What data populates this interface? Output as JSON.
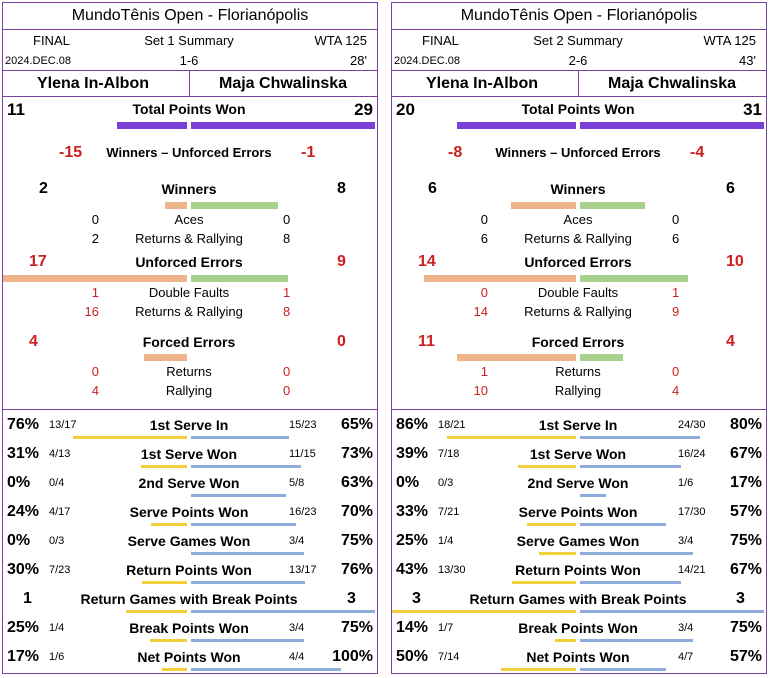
{
  "colors": {
    "purple": "#7a3fd9",
    "orange": "#f0b48a",
    "green": "#a9d18e",
    "yellow": "#f2cf3a",
    "blue": "#8faadc",
    "red": "#cc1f1f",
    "border": "#7b3fa0"
  },
  "chart_data": [
    {
      "type": "table",
      "header": {
        "title": "MundoTênis Open - Florianópolis",
        "round": "FINAL",
        "summary": "Set 1 Summary",
        "category": "WTA 125",
        "date": "2024.DEC.08",
        "score": "1-6",
        "duration": "28'",
        "player1": "Ylena In-Albon",
        "player2": "Maja Chwalinska"
      },
      "total_points": {
        "label": "Total Points Won",
        "p1": 11,
        "p2": 29
      },
      "w_ue": {
        "label": "Winners – Unforced Errors",
        "p1": "-15",
        "p2": "-1"
      },
      "winners": {
        "label": "Winners",
        "p1": 2,
        "p2": 8,
        "sub": [
          {
            "label": "Aces",
            "p1": 0,
            "p2": 0
          },
          {
            "label": "Returns & Rallying",
            "p1": 2,
            "p2": 8
          }
        ]
      },
      "unforced": {
        "label": "Unforced Errors",
        "p1": 17,
        "p2": 9,
        "sub": [
          {
            "label": "Double Faults",
            "p1": 1,
            "p2": 1
          },
          {
            "label": "Returns & Rallying",
            "p1": 16,
            "p2": 8
          }
        ]
      },
      "forced": {
        "label": "Forced Errors",
        "p1": 4,
        "p2": 0,
        "sub": [
          {
            "label": "Returns",
            "p1": 0,
            "p2": 0
          },
          {
            "label": "Rallying",
            "p1": 4,
            "p2": 0
          }
        ]
      },
      "serve_stats": [
        {
          "label": "1st Serve In",
          "p1_pct": "76%",
          "p1_frac": "13/17",
          "p2_frac": "15/23",
          "p2_pct": "65%",
          "p1_val": 0.76,
          "p2_val": 0.65
        },
        {
          "label": "1st Serve Won",
          "p1_pct": "31%",
          "p1_frac": "4/13",
          "p2_frac": "11/15",
          "p2_pct": "73%",
          "p1_val": 0.31,
          "p2_val": 0.73
        },
        {
          "label": "2nd Serve Won",
          "p1_pct": "0%",
          "p1_frac": "0/4",
          "p2_frac": "5/8",
          "p2_pct": "63%",
          "p1_val": 0.0,
          "p2_val": 0.63
        },
        {
          "label": "Serve Points Won",
          "p1_pct": "24%",
          "p1_frac": "4/17",
          "p2_frac": "16/23",
          "p2_pct": "70%",
          "p1_val": 0.24,
          "p2_val": 0.7
        },
        {
          "label": "Serve Games Won",
          "p1_pct": "0%",
          "p1_frac": "0/3",
          "p2_frac": "3/4",
          "p2_pct": "75%",
          "p1_val": 0.0,
          "p2_val": 0.75
        },
        {
          "label": "Return Points Won",
          "p1_pct": "30%",
          "p1_frac": "7/23",
          "p2_frac": "13/17",
          "p2_pct": "76%",
          "p1_val": 0.3,
          "p2_val": 0.76
        }
      ],
      "rg_bp": {
        "label": "Return Games with Break Points",
        "p1": 1,
        "p2": 3
      },
      "tail_stats": [
        {
          "label": "Break Points Won",
          "p1_pct": "25%",
          "p1_frac": "1/4",
          "p2_frac": "3/4",
          "p2_pct": "75%",
          "p1_val": 0.25,
          "p2_val": 0.75
        },
        {
          "label": "Net Points Won",
          "p1_pct": "17%",
          "p1_frac": "1/6",
          "p2_frac": "4/4",
          "p2_pct": "100%",
          "p1_val": 0.17,
          "p2_val": 1.0
        }
      ]
    },
    {
      "type": "table",
      "header": {
        "title": "MundoTênis Open - Florianópolis",
        "round": "FINAL",
        "summary": "Set 2 Summary",
        "category": "WTA 125",
        "date": "2024.DEC.08",
        "score": "2-6",
        "duration": "43'",
        "player1": "Ylena In-Albon",
        "player2": "Maja Chwalinska"
      },
      "total_points": {
        "label": "Total Points Won",
        "p1": 20,
        "p2": 31
      },
      "w_ue": {
        "label": "Winners – Unforced Errors",
        "p1": "-8",
        "p2": "-4"
      },
      "winners": {
        "label": "Winners",
        "p1": 6,
        "p2": 6,
        "sub": [
          {
            "label": "Aces",
            "p1": 0,
            "p2": 0
          },
          {
            "label": "Returns & Rallying",
            "p1": 6,
            "p2": 6
          }
        ]
      },
      "unforced": {
        "label": "Unforced Errors",
        "p1": 14,
        "p2": 10,
        "sub": [
          {
            "label": "Double Faults",
            "p1": 0,
            "p2": 1
          },
          {
            "label": "Returns & Rallying",
            "p1": 14,
            "p2": 9
          }
        ]
      },
      "forced": {
        "label": "Forced Errors",
        "p1": 11,
        "p2": 4,
        "sub": [
          {
            "label": "Returns",
            "p1": 1,
            "p2": 0
          },
          {
            "label": "Rallying",
            "p1": 10,
            "p2": 4
          }
        ]
      },
      "serve_stats": [
        {
          "label": "1st Serve In",
          "p1_pct": "86%",
          "p1_frac": "18/21",
          "p2_frac": "24/30",
          "p2_pct": "80%",
          "p1_val": 0.86,
          "p2_val": 0.8
        },
        {
          "label": "1st Serve Won",
          "p1_pct": "39%",
          "p1_frac": "7/18",
          "p2_frac": "16/24",
          "p2_pct": "67%",
          "p1_val": 0.39,
          "p2_val": 0.67
        },
        {
          "label": "2nd Serve Won",
          "p1_pct": "0%",
          "p1_frac": "0/3",
          "p2_frac": "1/6",
          "p2_pct": "17%",
          "p1_val": 0.0,
          "p2_val": 0.17
        },
        {
          "label": "Serve Points Won",
          "p1_pct": "33%",
          "p1_frac": "7/21",
          "p2_frac": "17/30",
          "p2_pct": "57%",
          "p1_val": 0.33,
          "p2_val": 0.57
        },
        {
          "label": "Serve Games Won",
          "p1_pct": "25%",
          "p1_frac": "1/4",
          "p2_frac": "3/4",
          "p2_pct": "75%",
          "p1_val": 0.25,
          "p2_val": 0.75
        },
        {
          "label": "Return Points Won",
          "p1_pct": "43%",
          "p1_frac": "13/30",
          "p2_frac": "14/21",
          "p2_pct": "67%",
          "p1_val": 0.43,
          "p2_val": 0.67
        }
      ],
      "rg_bp": {
        "label": "Return Games with Break Points",
        "p1": 3,
        "p2": 3
      },
      "tail_stats": [
        {
          "label": "Break Points Won",
          "p1_pct": "14%",
          "p1_frac": "1/7",
          "p2_frac": "3/4",
          "p2_pct": "75%",
          "p1_val": 0.14,
          "p2_val": 0.75
        },
        {
          "label": "Net Points Won",
          "p1_pct": "50%",
          "p1_frac": "7/14",
          "p2_frac": "4/7",
          "p2_pct": "57%",
          "p1_val": 0.5,
          "p2_val": 0.57
        }
      ]
    }
  ]
}
